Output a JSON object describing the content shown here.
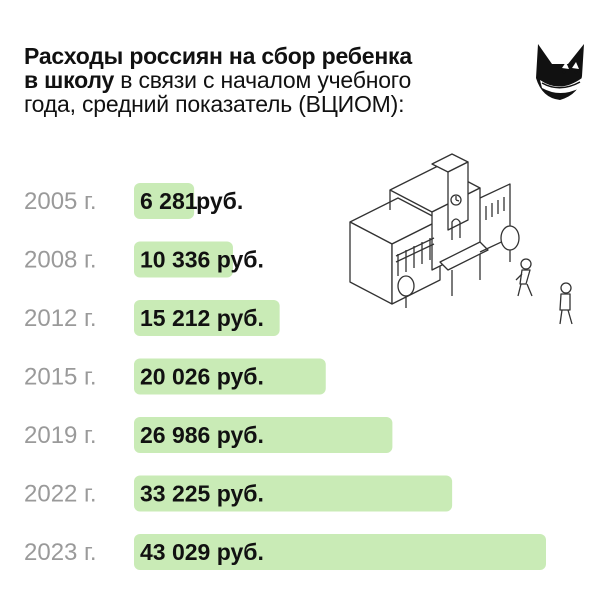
{
  "title": {
    "line1": "Расходы россиян на сбор ребенка",
    "line2_bold": "в школу",
    "line2_rest": " в связи с началом учебного",
    "line3": "года, средний показатель (ВЦИОМ):"
  },
  "colors": {
    "bar": "#c9ebb6",
    "year_text": "#9a9a9a",
    "value_text": "#111111"
  },
  "icons": [
    "mascot-icon",
    "school-building-icon",
    "children-icon"
  ],
  "chart_data": {
    "type": "bar",
    "orientation": "horizontal",
    "title": "Расходы россиян на сбор ребенка в школу в связи с началом учебного года, средний показатель (ВЦИОМ):",
    "categories": [
      "2005 г.",
      "2008 г.",
      "2012 г.",
      "2015 г.",
      "2019 г.",
      "2022 г.",
      "2023 г."
    ],
    "values": [
      6281,
      10336,
      15212,
      20026,
      26986,
      33225,
      43029
    ],
    "value_labels": [
      "6 281",
      "10 336 руб.",
      "15 212 руб.",
      "20 026 руб.",
      "26 986 руб.",
      "33 225 руб.",
      "43 029 руб."
    ],
    "outside_suffix": "руб.",
    "xlim": [
      0,
      43029
    ],
    "grid": false,
    "legend": "none"
  }
}
